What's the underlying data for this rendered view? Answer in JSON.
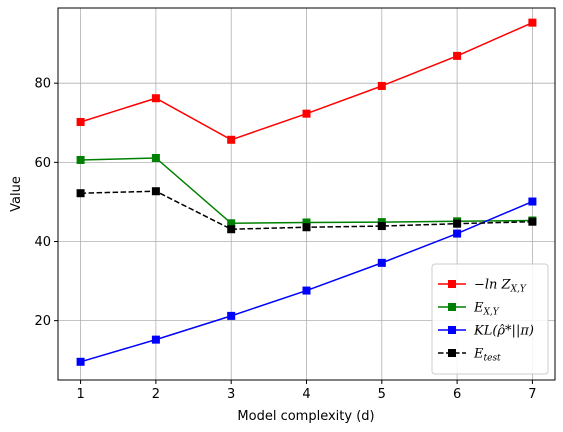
{
  "chart_data": {
    "type": "line",
    "x": [
      1,
      2,
      3,
      4,
      5,
      6,
      7
    ],
    "xlabel": "Model complexity (d)",
    "ylabel": "Value",
    "xlim": [
      0.7,
      7.3
    ],
    "ylim": [
      5,
      99
    ],
    "xticks": [
      "1",
      "2",
      "3",
      "4",
      "5",
      "6",
      "7"
    ],
    "yticks": [
      "20",
      "40",
      "60",
      "80"
    ],
    "grid": true,
    "legend_position": "lower-right",
    "series": [
      {
        "name_main": "−ln Z",
        "name_sub": "X,Y",
        "color": "#ff0000",
        "dash": "solid",
        "marker": "square",
        "values": [
          70.2,
          76.2,
          65.7,
          72.3,
          79.3,
          86.9,
          95.3
        ]
      },
      {
        "name_main": "E",
        "name_sub": "X,Y",
        "color": "#008000",
        "dash": "solid",
        "marker": "square",
        "values": [
          60.6,
          61.1,
          44.6,
          44.8,
          44.9,
          45.1,
          45.3
        ]
      },
      {
        "name_main": "KL(ρ̂*||π)",
        "name_sub": "",
        "color": "#0000ff",
        "dash": "solid",
        "marker": "square",
        "values": [
          9.6,
          15.2,
          21.2,
          27.6,
          34.6,
          42.0,
          50.1
        ]
      },
      {
        "name_main": "E",
        "name_sub": "test",
        "color": "#000000",
        "dash": "dashed",
        "marker": "square",
        "values": [
          52.2,
          52.7,
          43.1,
          43.6,
          43.9,
          44.5,
          45.0
        ]
      }
    ]
  }
}
